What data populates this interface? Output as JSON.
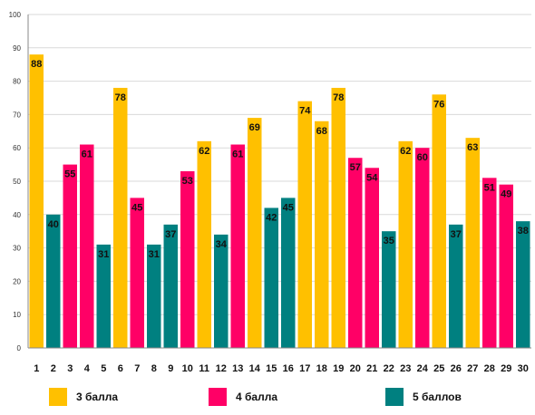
{
  "chart_data": {
    "type": "bar",
    "categories": [
      "1",
      "2",
      "3",
      "4",
      "5",
      "6",
      "7",
      "8",
      "9",
      "10",
      "11",
      "12",
      "13",
      "14",
      "15",
      "16",
      "17",
      "18",
      "19",
      "20",
      "21",
      "22",
      "23",
      "24",
      "25",
      "26",
      "27",
      "28",
      "29",
      "30"
    ],
    "values": [
      88,
      40,
      55,
      61,
      31,
      78,
      45,
      31,
      37,
      53,
      62,
      34,
      61,
      69,
      42,
      45,
      74,
      68,
      78,
      57,
      54,
      35,
      62,
      60,
      76,
      37,
      63,
      51,
      49,
      38
    ],
    "groups": [
      0,
      2,
      1,
      1,
      2,
      0,
      1,
      2,
      2,
      1,
      0,
      2,
      1,
      0,
      2,
      2,
      0,
      0,
      0,
      1,
      1,
      2,
      0,
      1,
      0,
      2,
      0,
      1,
      1,
      2
    ],
    "ylim": [
      0,
      100
    ],
    "yticks": [
      0,
      10,
      20,
      30,
      40,
      50,
      60,
      70,
      80,
      90,
      100
    ],
    "grid": true,
    "legend_position": "bottom",
    "series": [
      {
        "name": "3 балла",
        "color": "#FFC000"
      },
      {
        "name": "4 балла",
        "color": "#FF0066"
      },
      {
        "name": "5 баллов",
        "color": "#008080"
      }
    ]
  }
}
